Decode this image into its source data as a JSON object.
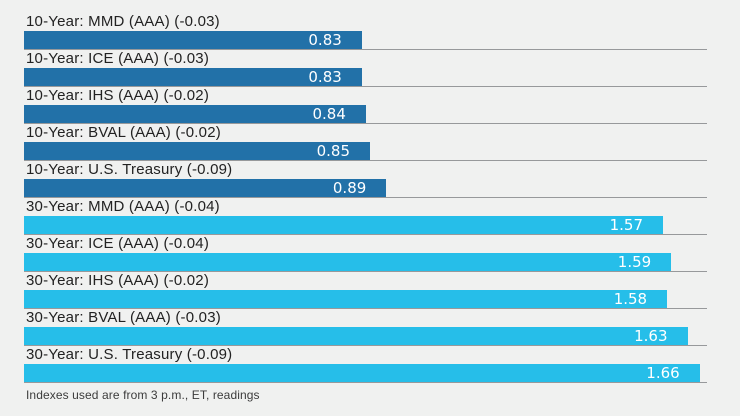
{
  "chart_data": {
    "type": "bar",
    "orientation": "horizontal",
    "title": "",
    "xlabel": "",
    "ylabel": "",
    "xlim": [
      0,
      1.678
    ],
    "grid": "row-separator-lines",
    "legend": "none",
    "group_colors": {
      "10-year": "#2271A8",
      "30-year": "#26BEE9"
    },
    "rows": [
      {
        "label": "10-Year: MMD (AAA) (-0.03)",
        "value": 0.83,
        "group": "10-year"
      },
      {
        "label": "10-Year: ICE (AAA) (-0.03)",
        "value": 0.83,
        "group": "10-year"
      },
      {
        "label": "10-Year: IHS (AAA) (-0.02)",
        "value": 0.84,
        "group": "10-year"
      },
      {
        "label": "10-Year: BVAL (AAA) (-0.02)",
        "value": 0.85,
        "group": "10-year"
      },
      {
        "label": "10-Year: U.S. Treasury (-0.09)",
        "value": 0.89,
        "group": "10-year"
      },
      {
        "label": "30-Year: MMD (AAA) (-0.04)",
        "value": 1.57,
        "group": "30-year"
      },
      {
        "label": "30-Year: ICE (AAA) (-0.04)",
        "value": 1.59,
        "group": "30-year"
      },
      {
        "label": "30-Year: IHS (AAA) (-0.02)",
        "value": 1.58,
        "group": "30-year"
      },
      {
        "label": "30-Year: BVAL (AAA) (-0.03)",
        "value": 1.63,
        "group": "30-year"
      },
      {
        "label": "30-Year: U.S. Treasury (-0.09)",
        "value": 1.66,
        "group": "30-year"
      }
    ]
  },
  "footer": {
    "note": "Indexes used are from 3 p.m., ET, readings"
  },
  "colors": {
    "background": "#F0F1F0",
    "gridline": "#97999B",
    "label_text": "#222222",
    "value_text": "#FFFFFF",
    "bar_10_year": "#2271A8",
    "bar_30_year": "#26BEE9"
  }
}
